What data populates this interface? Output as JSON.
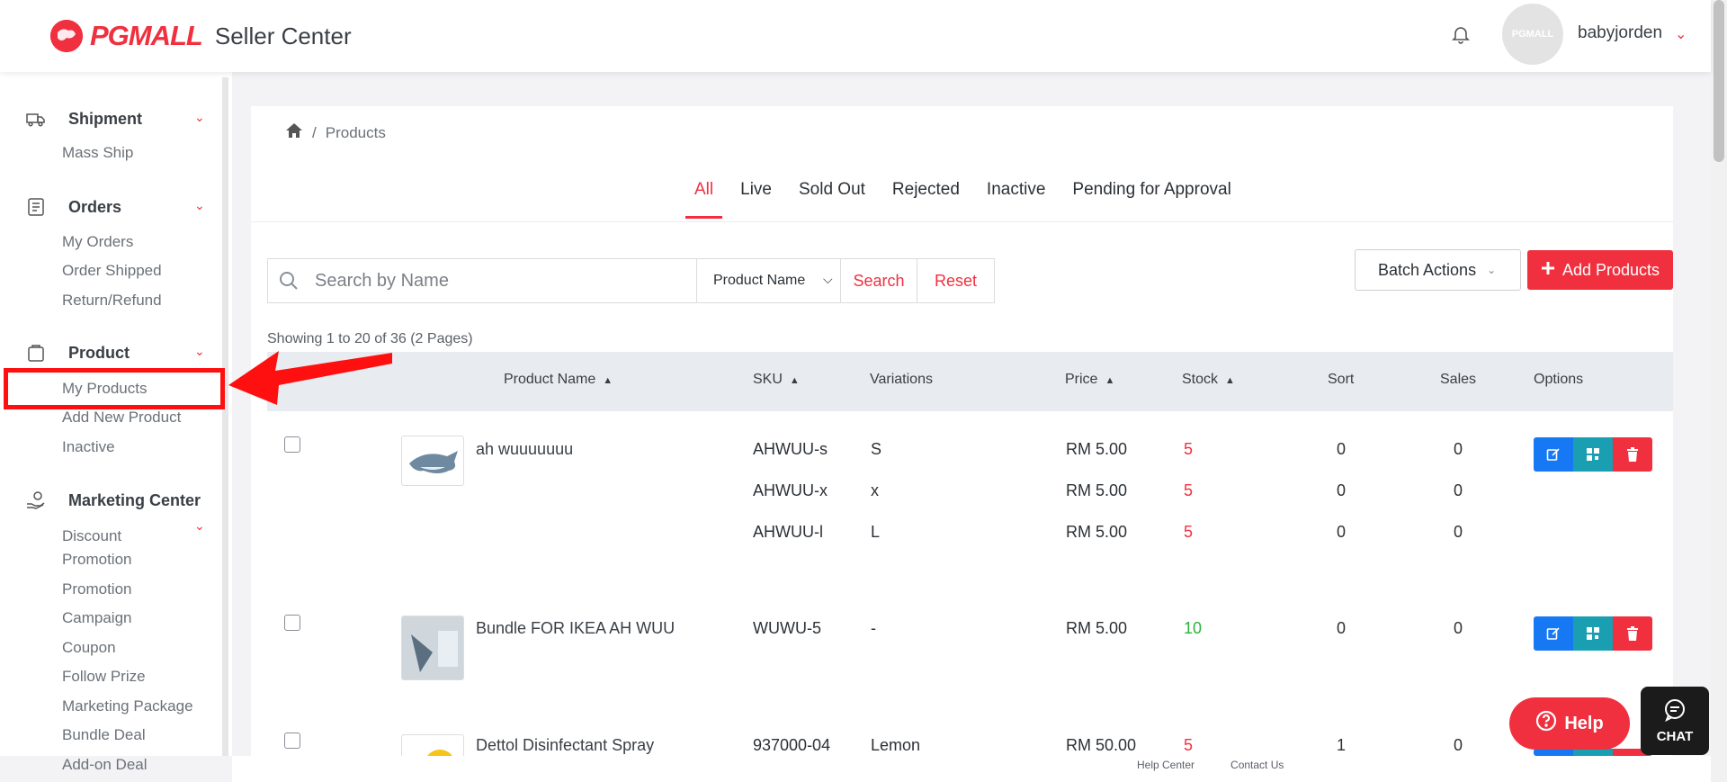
{
  "header": {
    "logo_text": "PGMALL",
    "logo_sub": "Seller Center",
    "username": "babyjorden",
    "avatar_text": "PGMALL"
  },
  "sidebar": {
    "shipment": {
      "label": "Shipment",
      "items": [
        "Mass Ship"
      ]
    },
    "orders": {
      "label": "Orders",
      "items": [
        "My Orders",
        "Order Shipped",
        "Return/Refund"
      ]
    },
    "product": {
      "label": "Product",
      "items": [
        "My Products",
        "Add New Product",
        "Inactive"
      ]
    },
    "marketing": {
      "label": "Marketing Center",
      "items": [
        "Discount",
        "Promotion",
        "Promotion",
        "Campaign",
        "Coupon",
        "Follow Prize",
        "Marketing Package",
        "Bundle Deal",
        "Add-on Deal"
      ]
    }
  },
  "breadcrumb": {
    "separator": "/",
    "current": "Products"
  },
  "tabs": [
    "All",
    "Live",
    "Sold Out",
    "Rejected",
    "Inactive",
    "Pending for Approval"
  ],
  "search": {
    "placeholder": "Search by Name",
    "field_select": "Product Name",
    "search_label": "Search",
    "reset_label": "Reset"
  },
  "actions": {
    "batch_label": "Batch Actions",
    "add_label": "Add Products"
  },
  "showing": "Showing 1 to 20 of 36 (2 Pages)",
  "table": {
    "headers": [
      "Product Name",
      "SKU",
      "Variations",
      "Price",
      "Stock",
      "Sort",
      "Sales",
      "Options"
    ],
    "rows": [
      {
        "name": "ah wuuuuuuu",
        "variants": [
          {
            "sku": "AHWUU-s",
            "variation": "S",
            "price": "RM 5.00",
            "stock": "5",
            "sort": "0",
            "sales": "0"
          },
          {
            "sku": "AHWUU-x",
            "variation": "x",
            "price": "RM 5.00",
            "stock": "5",
            "sort": "0",
            "sales": "0"
          },
          {
            "sku": "AHWUU-l",
            "variation": "L",
            "price": "RM 5.00",
            "stock": "5",
            "sort": "0",
            "sales": "0"
          }
        ]
      },
      {
        "name": "Bundle FOR IKEA AH WUU",
        "variants": [
          {
            "sku": "WUWU-5",
            "variation": "-",
            "price": "RM 5.00",
            "stock": "10",
            "sort": "0",
            "sales": "0"
          }
        ]
      },
      {
        "name": "Dettol Disinfectant Spray",
        "variants": [
          {
            "sku": "937000-04",
            "variation": "Lemon",
            "price": "RM 50.00",
            "stock": "5",
            "sort": "1",
            "sales": "0"
          }
        ]
      }
    ]
  },
  "floating": {
    "help_label": "Help",
    "chat_label": "CHAT"
  },
  "footer": {
    "help_center": "Help Center",
    "contact_us": "Contact Us"
  },
  "colors": {
    "brand": "#f0303f",
    "edit": "#1678f2",
    "qr": "#1a9fb2",
    "stock_green": "#2bb33b"
  }
}
